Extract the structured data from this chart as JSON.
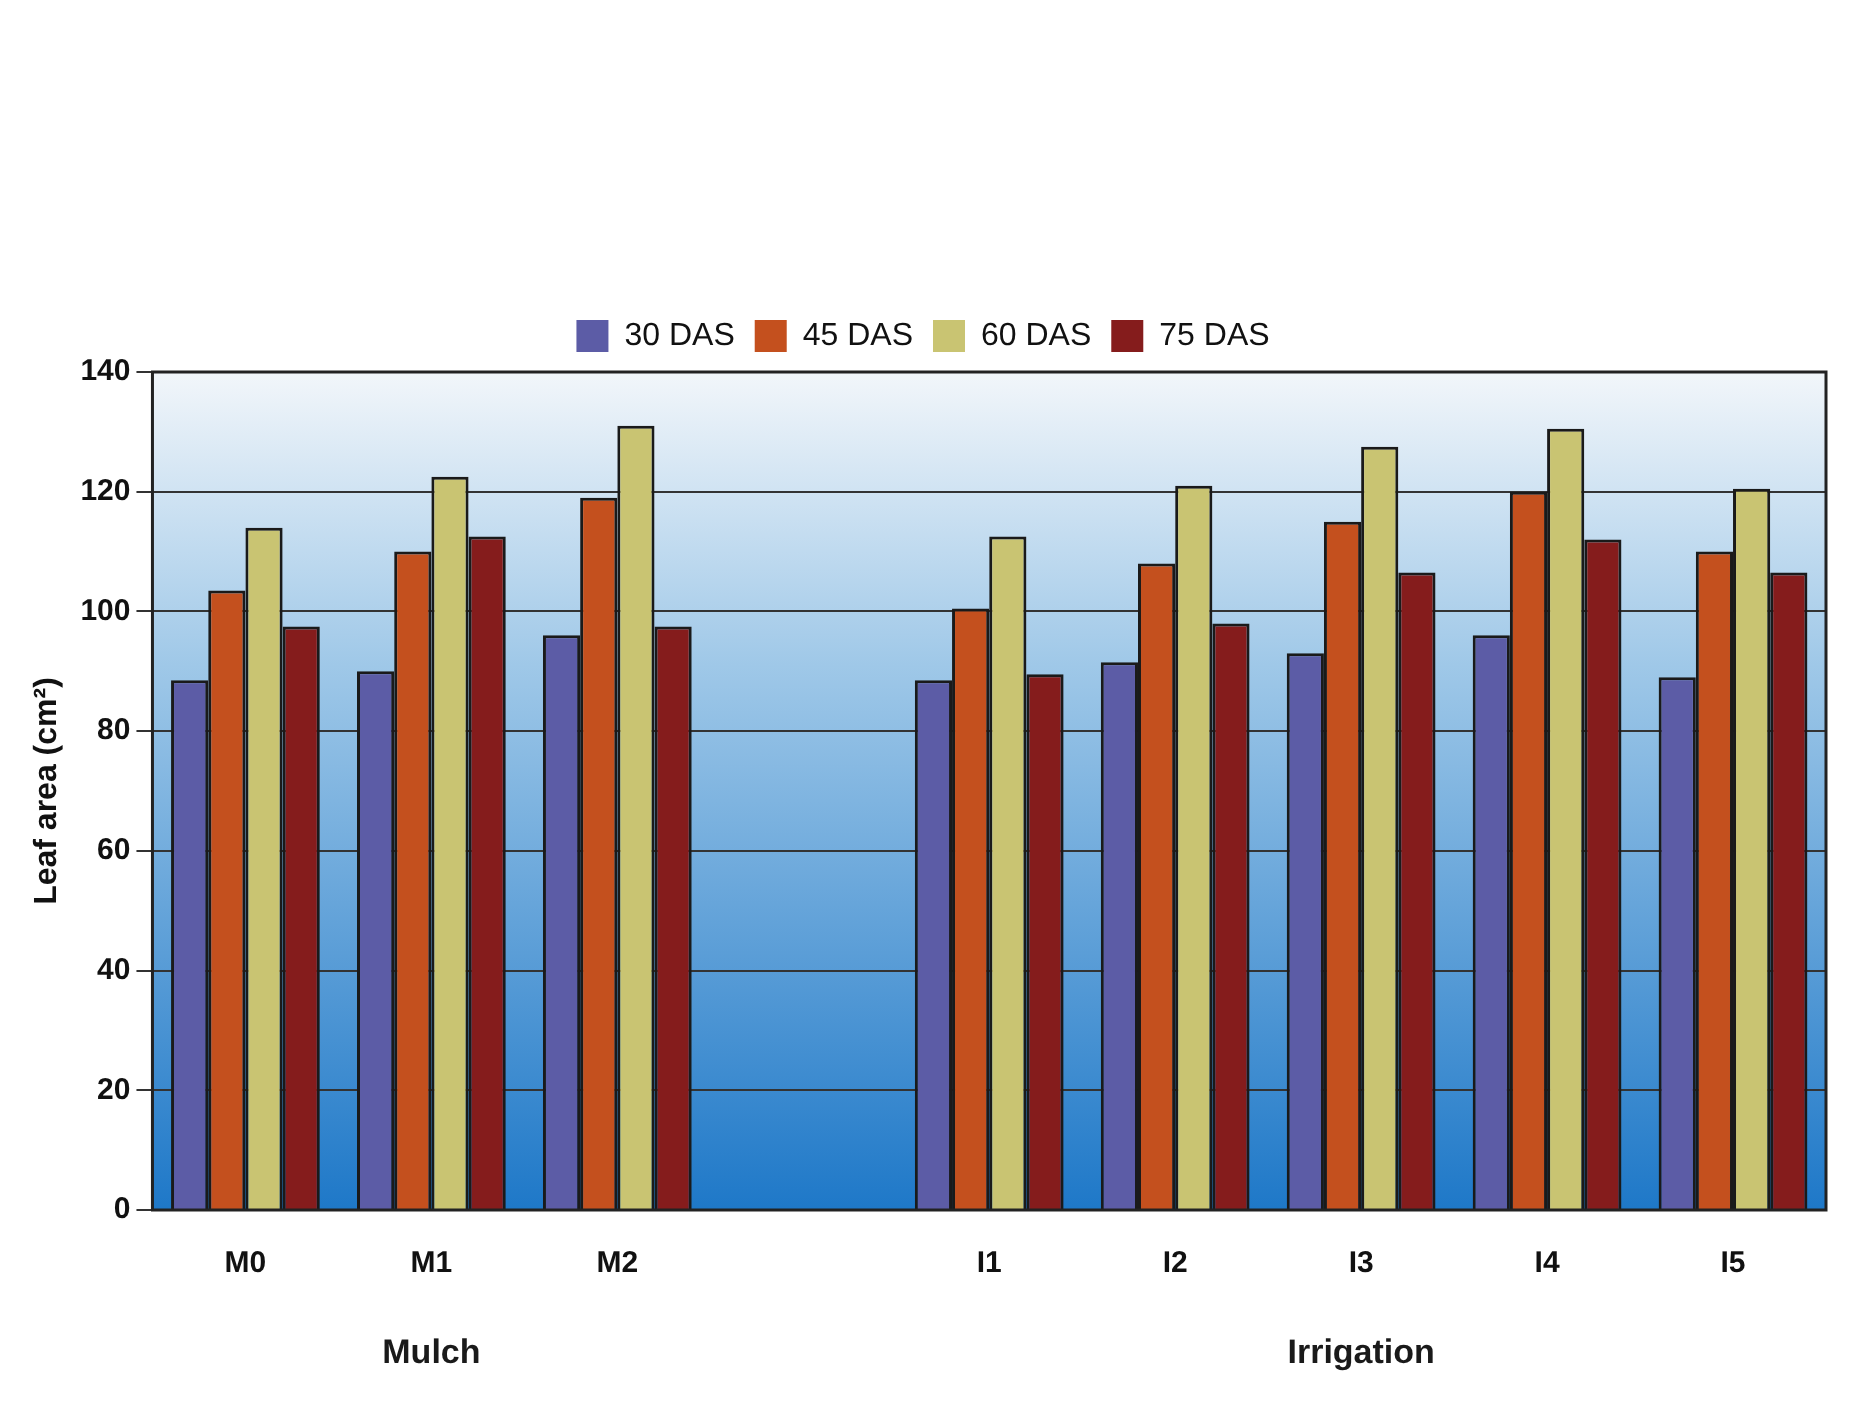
{
  "chart_data": {
    "type": "bar",
    "ylabel": "Leaf area (cm²)",
    "categories": [
      "M0",
      "M1",
      "M2",
      null,
      "I1",
      "I2",
      "I3",
      "I4",
      "I5"
    ],
    "series": [
      {
        "name": "30 DAS",
        "color": "#5c5ca6",
        "values": [
          88.5,
          90,
          96,
          null,
          88.5,
          91.5,
          93,
          96,
          89
        ]
      },
      {
        "name": "45 DAS",
        "color": "#c4501e",
        "values": [
          103.5,
          110,
          119,
          null,
          100.5,
          108,
          115,
          120,
          110
        ]
      },
      {
        "name": "60 DAS",
        "color": "#c9c472",
        "values": [
          114,
          122.5,
          131,
          null,
          112.5,
          121,
          127.5,
          130.5,
          120.5
        ]
      },
      {
        "name": "75 DAS",
        "color": "#851c1c",
        "values": [
          97.5,
          112.5,
          97.5,
          null,
          89.5,
          98,
          106.5,
          112,
          106.5
        ]
      }
    ],
    "ylim": [
      0,
      140
    ],
    "yticks": [
      0,
      20,
      40,
      60,
      80,
      100,
      120,
      140
    ],
    "grid": "y",
    "legend": "top",
    "annotations": [
      "Mulch",
      "Irrigation"
    ]
  }
}
